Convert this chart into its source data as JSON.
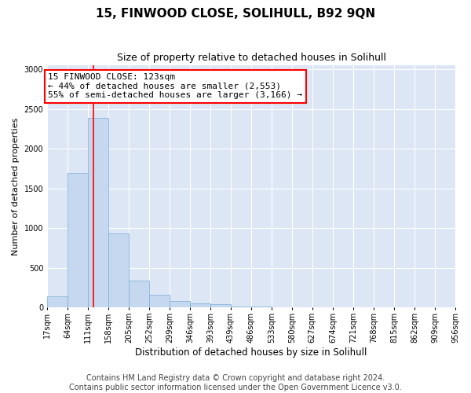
{
  "title": "15, FINWOOD CLOSE, SOLIHULL, B92 9QN",
  "subtitle": "Size of property relative to detached houses in Solihull",
  "xlabel": "Distribution of detached houses by size in Solihull",
  "ylabel": "Number of detached properties",
  "bar_color": "#c5d8ef",
  "bar_edge_color": "#7aadd4",
  "bg_color": "#dce6f5",
  "annotation_text": "15 FINWOOD CLOSE: 123sqm\n← 44% of detached houses are smaller (2,553)\n55% of semi-detached houses are larger (3,166) →",
  "vline_x": 123,
  "bins": [
    17,
    64,
    111,
    158,
    205,
    252,
    299,
    346,
    393,
    439,
    486,
    533,
    580,
    627,
    674,
    721,
    768,
    815,
    862,
    909,
    956
  ],
  "bar_values": [
    140,
    1700,
    2390,
    930,
    340,
    160,
    80,
    55,
    45,
    10,
    10,
    5,
    5,
    0,
    0,
    0,
    0,
    0,
    0,
    0
  ],
  "ylim": [
    0,
    3050
  ],
  "yticks": [
    0,
    500,
    1000,
    1500,
    2000,
    2500,
    3000
  ],
  "footer": "Contains HM Land Registry data © Crown copyright and database right 2024.\nContains public sector information licensed under the Open Government Licence v3.0.",
  "footer_fontsize": 7,
  "title_fontsize": 11,
  "subtitle_fontsize": 9,
  "xlabel_fontsize": 8.5,
  "ylabel_fontsize": 8,
  "tick_fontsize": 7,
  "annotation_fontsize": 8
}
